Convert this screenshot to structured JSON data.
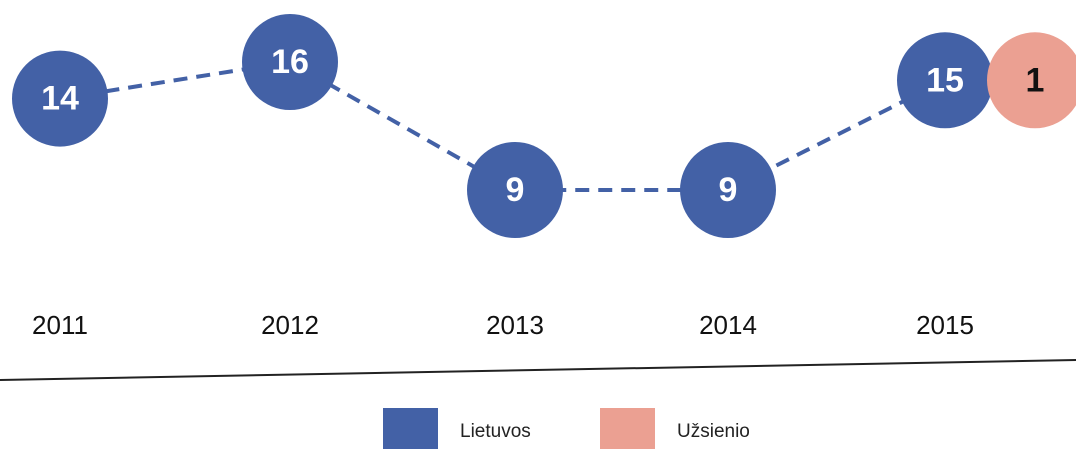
{
  "chart_data": {
    "type": "line",
    "categories": [
      "2011",
      "2012",
      "2013",
      "2014",
      "2015"
    ],
    "series": [
      {
        "name": "Lietuvos",
        "color": "#4361a6",
        "values": [
          14,
          16,
          9,
          9,
          15
        ]
      },
      {
        "name": "Užsienio",
        "color": "#eba092",
        "values": [
          null,
          null,
          null,
          null,
          1
        ]
      }
    ]
  }
}
